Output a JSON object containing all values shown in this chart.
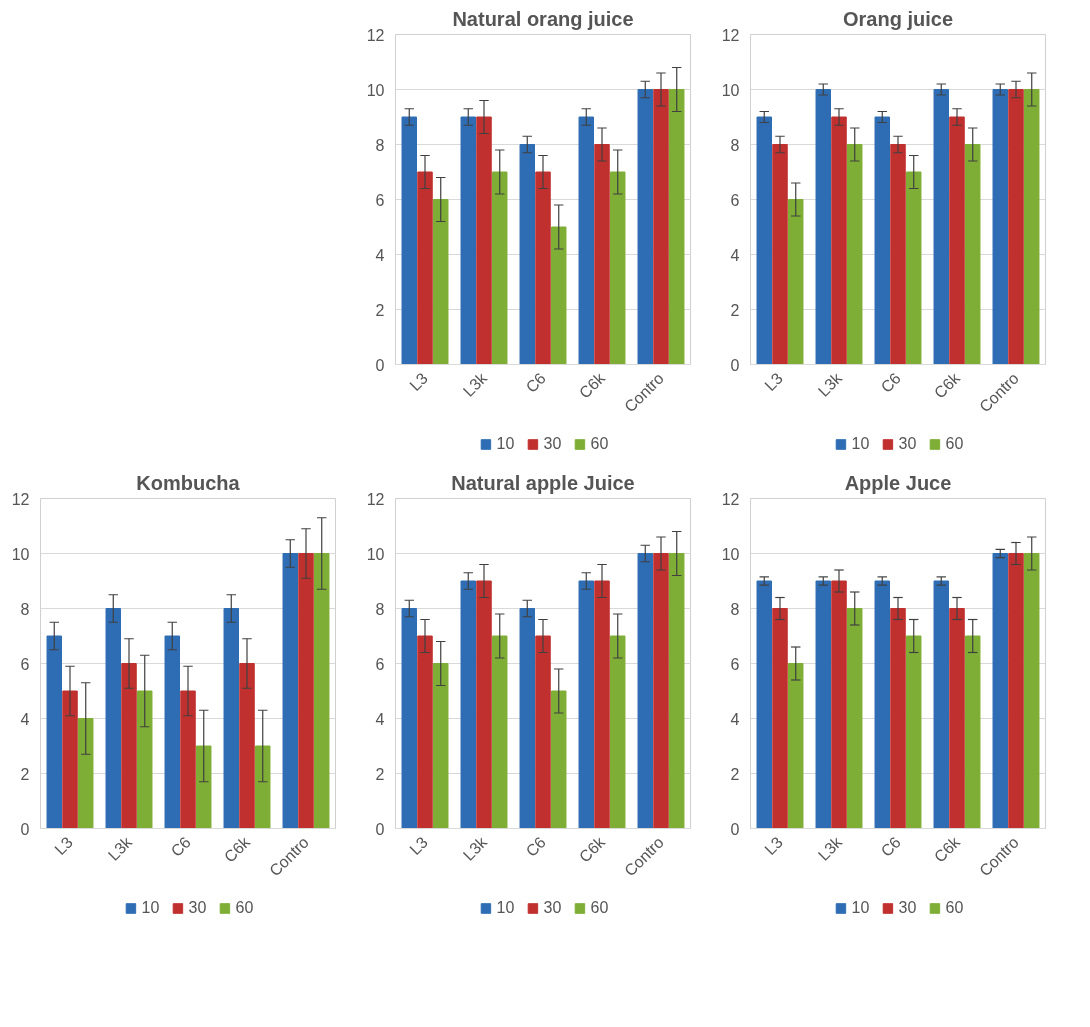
{
  "chart_data": [
    {
      "type": "bar",
      "title": "Natural orang juice",
      "categories": [
        "L3",
        "L3k",
        "C6",
        "C6k",
        "Contro"
      ],
      "ylim": [
        0,
        12
      ],
      "yticks": [
        0,
        2,
        4,
        6,
        8,
        10,
        12
      ],
      "grid": "y",
      "legend": "bottom",
      "series": [
        {
          "name": "10",
          "color": "#2e6db4",
          "values": [
            9,
            9,
            8,
            9,
            10
          ],
          "errors": [
            0.3,
            0.3,
            0.3,
            0.3,
            0.3
          ]
        },
        {
          "name": "30",
          "color": "#c0302f",
          "values": [
            7,
            9,
            7,
            8,
            10
          ],
          "errors": [
            0.6,
            0.6,
            0.6,
            0.6,
            0.6
          ]
        },
        {
          "name": "60",
          "color": "#7fae36",
          "values": [
            6,
            7,
            5,
            7,
            10
          ],
          "errors": [
            0.8,
            0.8,
            0.8,
            0.8,
            0.8
          ]
        }
      ]
    },
    {
      "type": "bar",
      "title": "Orang juice",
      "categories": [
        "L3",
        "L3k",
        "C6",
        "C6k",
        "Contro"
      ],
      "ylim": [
        0,
        12
      ],
      "yticks": [
        0,
        2,
        4,
        6,
        8,
        10,
        12
      ],
      "grid": "y",
      "legend": "bottom",
      "series": [
        {
          "name": "10",
          "color": "#2e6db4",
          "values": [
            9,
            10,
            9,
            10,
            10
          ],
          "errors": [
            0.2,
            0.2,
            0.2,
            0.2,
            0.2
          ]
        },
        {
          "name": "30",
          "color": "#c0302f",
          "values": [
            8,
            9,
            8,
            9,
            10
          ],
          "errors": [
            0.3,
            0.3,
            0.3,
            0.3,
            0.3
          ]
        },
        {
          "name": "60",
          "color": "#7fae36",
          "values": [
            6,
            8,
            7,
            8,
            10
          ],
          "errors": [
            0.6,
            0.6,
            0.6,
            0.6,
            0.6
          ]
        }
      ]
    },
    {
      "type": "bar",
      "title": "Kombucha",
      "categories": [
        "L3",
        "L3k",
        "C6",
        "C6k",
        "Contro"
      ],
      "ylim": [
        0,
        12
      ],
      "yticks": [
        0,
        2,
        4,
        6,
        8,
        10,
        12
      ],
      "grid": "y",
      "legend": "bottom",
      "series": [
        {
          "name": "10",
          "color": "#2e6db4",
          "values": [
            7,
            8,
            7,
            8,
            10
          ],
          "errors": [
            0.5,
            0.5,
            0.5,
            0.5,
            0.5
          ]
        },
        {
          "name": "30",
          "color": "#c0302f",
          "values": [
            5,
            6,
            5,
            6,
            10
          ],
          "errors": [
            0.9,
            0.9,
            0.9,
            0.9,
            0.9
          ]
        },
        {
          "name": "60",
          "color": "#7fae36",
          "values": [
            4,
            5,
            3,
            3,
            10
          ],
          "errors": [
            1.3,
            1.3,
            1.3,
            1.3,
            1.3
          ]
        }
      ]
    },
    {
      "type": "bar",
      "title": "Natural apple Juice",
      "categories": [
        "L3",
        "L3k",
        "C6",
        "C6k",
        "Contro"
      ],
      "ylim": [
        0,
        12
      ],
      "yticks": [
        0,
        2,
        4,
        6,
        8,
        10,
        12
      ],
      "grid": "y",
      "legend": "bottom",
      "series": [
        {
          "name": "10",
          "color": "#2e6db4",
          "values": [
            8,
            9,
            8,
            9,
            10
          ],
          "errors": [
            0.3,
            0.3,
            0.3,
            0.3,
            0.3
          ]
        },
        {
          "name": "30",
          "color": "#c0302f",
          "values": [
            7,
            9,
            7,
            9,
            10
          ],
          "errors": [
            0.6,
            0.6,
            0.6,
            0.6,
            0.6
          ]
        },
        {
          "name": "60",
          "color": "#7fae36",
          "values": [
            6,
            7,
            5,
            7,
            10
          ],
          "errors": [
            0.8,
            0.8,
            0.8,
            0.8,
            0.8
          ]
        }
      ]
    },
    {
      "type": "bar",
      "title": "Apple Juce",
      "categories": [
        "L3",
        "L3k",
        "C6",
        "C6k",
        "Contro"
      ],
      "ylim": [
        0,
        12
      ],
      "yticks": [
        0,
        2,
        4,
        6,
        8,
        10,
        12
      ],
      "grid": "y",
      "legend": "bottom",
      "series": [
        {
          "name": "10",
          "color": "#2e6db4",
          "values": [
            9,
            9,
            9,
            9,
            10
          ],
          "errors": [
            0.15,
            0.15,
            0.15,
            0.15,
            0.15
          ]
        },
        {
          "name": "30",
          "color": "#c0302f",
          "values": [
            8,
            9,
            8,
            8,
            10
          ],
          "errors": [
            0.4,
            0.4,
            0.4,
            0.4,
            0.4
          ]
        },
        {
          "name": "60",
          "color": "#7fae36",
          "values": [
            6,
            8,
            7,
            7,
            10
          ],
          "errors": [
            0.6,
            0.6,
            0.6,
            0.6,
            0.6
          ]
        }
      ]
    }
  ]
}
